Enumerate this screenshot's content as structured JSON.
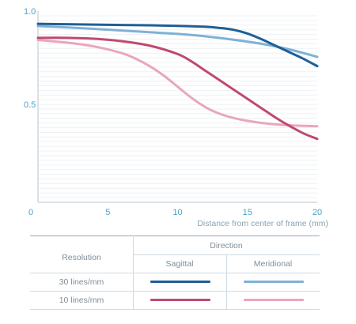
{
  "chart_data": {
    "type": "line",
    "xlabel": "Distance from center of frame (mm)",
    "ylabel": "",
    "xlim": [
      0,
      20
    ],
    "ylim": [
      0,
      1.0
    ],
    "xticks": [
      "0",
      "5",
      "10",
      "15",
      "20"
    ],
    "yticks": [
      "0",
      "0.5",
      "1.0"
    ],
    "grid": "horizontal",
    "series": [
      {
        "key": "s30",
        "color": "#1f5f96",
        "x": [
          0,
          2,
          4,
          6,
          8,
          10,
          12,
          13,
          14,
          15,
          16,
          17,
          18,
          19,
          20
        ],
        "y": [
          0.957,
          0.955,
          0.953,
          0.951,
          0.949,
          0.946,
          0.941,
          0.935,
          0.925,
          0.905,
          0.875,
          0.84,
          0.805,
          0.77,
          0.73
        ]
      },
      {
        "key": "m30",
        "color": "#7fb1d6",
        "x": [
          0,
          2,
          4,
          6,
          8,
          10,
          12,
          14,
          16,
          18,
          20
        ],
        "y": [
          0.945,
          0.938,
          0.93,
          0.921,
          0.912,
          0.903,
          0.89,
          0.872,
          0.85,
          0.82,
          0.78
        ]
      },
      {
        "key": "s10",
        "color": "#c04a6e",
        "x": [
          0,
          2,
          4,
          6,
          8,
          10,
          11,
          12,
          13,
          14,
          15,
          16,
          17,
          18,
          19,
          20
        ],
        "y": [
          0.882,
          0.882,
          0.877,
          0.864,
          0.84,
          0.795,
          0.755,
          0.705,
          0.655,
          0.605,
          0.555,
          0.505,
          0.455,
          0.41,
          0.37,
          0.34
        ]
      },
      {
        "key": "m10",
        "color": "#e9a7ba",
        "x": [
          0,
          2,
          4,
          6,
          7,
          8,
          9,
          10,
          11,
          12,
          13,
          14,
          15,
          16,
          17,
          18,
          19,
          20
        ],
        "y": [
          0.87,
          0.857,
          0.836,
          0.8,
          0.77,
          0.73,
          0.68,
          0.62,
          0.56,
          0.51,
          0.475,
          0.452,
          0.437,
          0.426,
          0.418,
          0.413,
          0.41,
          0.408
        ]
      }
    ]
  },
  "legend": {
    "title": "Direction",
    "row_header": "Resolution",
    "columns": [
      "Sagittal",
      "Meridional"
    ],
    "rows": [
      {
        "label": "30 lines/mm",
        "sagittal_color": "#1f5f96",
        "meridional_color": "#7fb1d6"
      },
      {
        "label": "10 lines/mm",
        "sagittal_color": "#c04a6e",
        "meridional_color": "#e9a7ba"
      }
    ]
  }
}
